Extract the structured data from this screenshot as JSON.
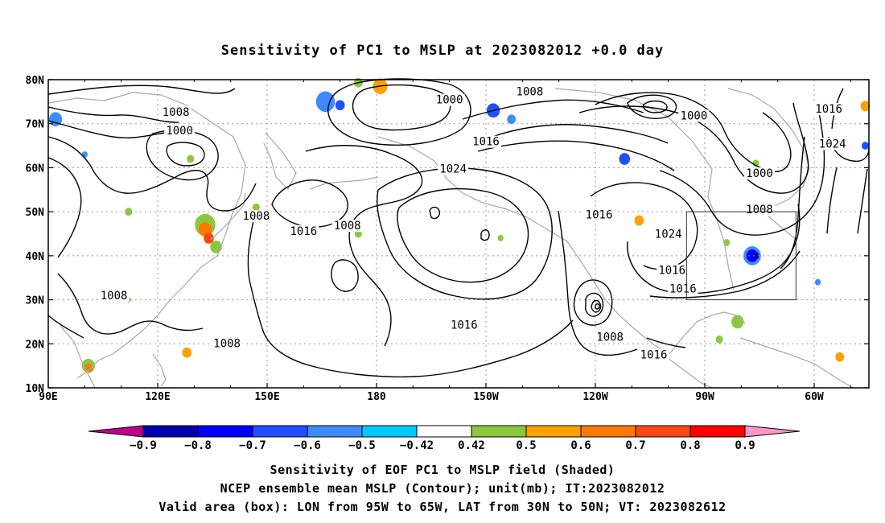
{
  "chart_data": {
    "type": "contour-map",
    "title": "Sensitivity of PC1 to MSLP at 2023082012 +0.0 day",
    "x_ticks": [
      "90E",
      "120E",
      "150E",
      "180",
      "150W",
      "120W",
      "90W",
      "60W"
    ],
    "y_ticks": [
      "80N",
      "70N",
      "60N",
      "50N",
      "40N",
      "30N",
      "20N",
      "10N"
    ],
    "lon_range": [
      90,
      315
    ],
    "lat_range": [
      10,
      80
    ],
    "grid": "dotted",
    "contour_labels": [
      {
        "text": "1008",
        "lon": 125,
        "lat": 72.5
      },
      {
        "text": "1000",
        "lon": 126,
        "lat": 68.3
      },
      {
        "text": "1000",
        "lon": 200,
        "lat": 75.3
      },
      {
        "text": "1008",
        "lon": 222,
        "lat": 77.2
      },
      {
        "text": "1016",
        "lon": 210,
        "lat": 65.8
      },
      {
        "text": "1024",
        "lon": 201,
        "lat": 59.6
      },
      {
        "text": "1000",
        "lon": 267,
        "lat": 71.7
      },
      {
        "text": "1016",
        "lon": 304,
        "lat": 73.2
      },
      {
        "text": "1024",
        "lon": 305,
        "lat": 65.3
      },
      {
        "text": "1000",
        "lon": 285,
        "lat": 58.6
      },
      {
        "text": "1008",
        "lon": 147,
        "lat": 48.9
      },
      {
        "text": "1008",
        "lon": 172,
        "lat": 46.7
      },
      {
        "text": "1016",
        "lon": 160,
        "lat": 45.5
      },
      {
        "text": "1016",
        "lon": 241,
        "lat": 49.2
      },
      {
        "text": "1024",
        "lon": 260,
        "lat": 44.8
      },
      {
        "text": "1008",
        "lon": 285,
        "lat": 50.4
      },
      {
        "text": "1016",
        "lon": 261,
        "lat": 36.6
      },
      {
        "text": "1016",
        "lon": 264,
        "lat": 32.4
      },
      {
        "text": "1008",
        "lon": 108,
        "lat": 30.8
      },
      {
        "text": "1008",
        "lon": 139,
        "lat": 20.0
      },
      {
        "text": "1016",
        "lon": 204,
        "lat": 24.2
      },
      {
        "text": "1008",
        "lon": 244,
        "lat": 21.4
      },
      {
        "text": "1016",
        "lon": 256,
        "lat": 17.4
      }
    ],
    "valid_box": {
      "lon": [
        265,
        295
      ],
      "lat": [
        30,
        50
      ]
    },
    "colorbar": {
      "labels": [
        "-0.9",
        "-0.8",
        "-0.7",
        "-0.6",
        "-0.5",
        "-0.42",
        "0.42",
        "0.5",
        "0.6",
        "0.7",
        "0.8",
        "0.9"
      ],
      "colors": [
        "#c0008c",
        "#0000b0",
        "#0000ff",
        "#1e50ff",
        "#3c8cff",
        "#00c8ff",
        "#ffffff",
        "#8cc83c",
        "#ffa000",
        "#ff7800",
        "#ff4614",
        "#ff0000",
        "#ff96c8"
      ]
    },
    "shading": [
      {
        "lon": 92,
        "lat": 71,
        "r": 1.8,
        "v": -0.5
      },
      {
        "lon": 166,
        "lat": 75,
        "r": 2.6,
        "v": -0.5
      },
      {
        "lon": 170,
        "lat": 74.2,
        "r": 1.3,
        "v": -0.6
      },
      {
        "lon": 181,
        "lat": 78.5,
        "r": 2,
        "v": 0.6
      },
      {
        "lon": 175,
        "lat": 79.3,
        "r": 1.2,
        "v": 0.5
      },
      {
        "lon": 212,
        "lat": 73,
        "r": 1.8,
        "v": -0.6
      },
      {
        "lon": 217,
        "lat": 71,
        "r": 1.2,
        "v": -0.5
      },
      {
        "lon": 248,
        "lat": 62,
        "r": 1.5,
        "v": -0.6
      },
      {
        "lon": 133,
        "lat": 47,
        "r": 2.8,
        "v": 0.5
      },
      {
        "lon": 133,
        "lat": 46,
        "r": 1.8,
        "v": 0.7
      },
      {
        "lon": 134,
        "lat": 44,
        "r": 1.4,
        "v": 0.8
      },
      {
        "lon": 136,
        "lat": 42,
        "r": 1.6,
        "v": 0.5
      },
      {
        "lon": 101,
        "lat": 15,
        "r": 1.8,
        "v": 0.5
      },
      {
        "lon": 101,
        "lat": 14.5,
        "r": 1.1,
        "v": 0.7
      },
      {
        "lon": 128,
        "lat": 18,
        "r": 1.3,
        "v": 0.6
      },
      {
        "lon": 129,
        "lat": 62,
        "r": 1.0,
        "v": 0.5
      },
      {
        "lon": 147,
        "lat": 51,
        "r": 1.0,
        "v": 0.5
      },
      {
        "lon": 112,
        "lat": 50,
        "r": 1.0,
        "v": 0.5
      },
      {
        "lon": 175,
        "lat": 45,
        "r": 1.0,
        "v": 0.5
      },
      {
        "lon": 214,
        "lat": 44,
        "r": 0.8,
        "v": 0.5
      },
      {
        "lon": 252,
        "lat": 48,
        "r": 1.3,
        "v": 0.6
      },
      {
        "lon": 283,
        "lat": 40,
        "r": 2.4,
        "v": -0.5
      },
      {
        "lon": 283,
        "lat": 40,
        "r": 1.6,
        "v": -0.7
      },
      {
        "lon": 284,
        "lat": 40,
        "r": 0.9,
        "v": -0.8
      },
      {
        "lon": 276,
        "lat": 43,
        "r": 0.9,
        "v": 0.5
      },
      {
        "lon": 279,
        "lat": 25,
        "r": 1.7,
        "v": 0.5
      },
      {
        "lon": 274,
        "lat": 21,
        "r": 1.0,
        "v": 0.5
      },
      {
        "lon": 301,
        "lat": 34,
        "r": 0.8,
        "v": -0.5
      },
      {
        "lon": 314,
        "lat": 74,
        "r": 1.3,
        "v": 0.6
      },
      {
        "lon": 314,
        "lat": 65,
        "r": 1.0,
        "v": -0.6
      },
      {
        "lon": 307,
        "lat": 17,
        "r": 1.2,
        "v": 0.6
      },
      {
        "lon": 100,
        "lat": 63,
        "r": 0.8,
        "v": -0.5
      },
      {
        "lon": 112,
        "lat": 30,
        "r": 0.7,
        "v": 0.5
      },
      {
        "lon": 284,
        "lat": 61,
        "r": 0.9,
        "v": 0.5
      }
    ]
  },
  "caption": {
    "line1": "Sensitivity of EOF PC1 to MSLP field (Shaded)",
    "line2": "NCEP ensemble mean MSLP (Contour); unit(mb); IT:2023082012",
    "line3": "Valid area (box): LON from 95W to 65W, LAT from 30N to 50N; VT: 2023082612"
  }
}
